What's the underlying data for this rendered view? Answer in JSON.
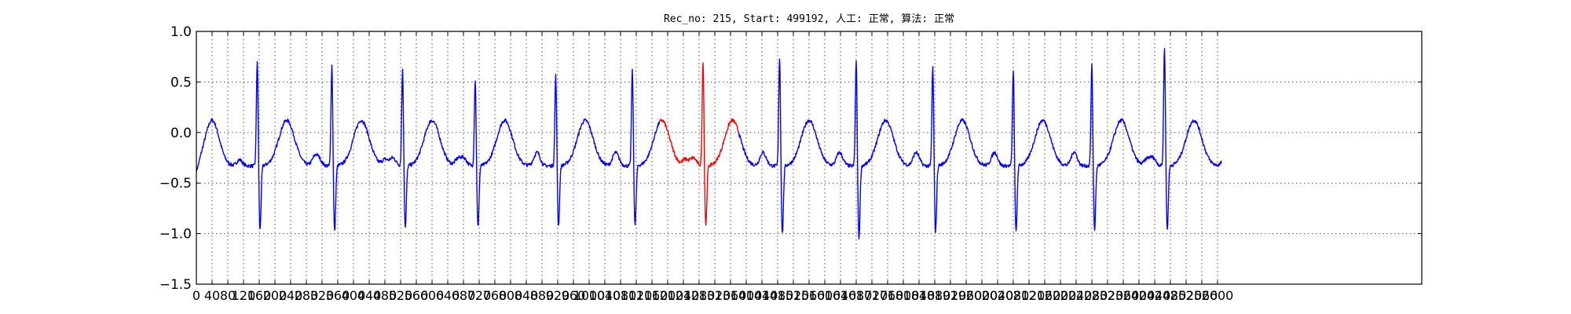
{
  "chart_data": {
    "type": "line",
    "title": "Rec_no: 215, Start: 499192, 人工: 正常, 算法: 正常",
    "xlabel": "",
    "ylabel": "",
    "xlim": [
      0,
      3120
    ],
    "ylim": [
      -1.5,
      1.0
    ],
    "grid": true,
    "yticks": [
      -1.5,
      -1.0,
      -0.5,
      0.0,
      0.5,
      1.0
    ],
    "ytick_labels": [
      "−1.5",
      "−1.0",
      "−0.5",
      "0.0",
      "0.5",
      "1.0"
    ],
    "xticks": [
      0,
      40,
      80,
      120,
      160,
      200,
      240,
      280,
      320,
      360,
      400,
      440,
      480,
      520,
      560,
      600,
      640,
      680,
      720,
      760,
      800,
      840,
      880,
      920,
      960,
      1000,
      1040,
      1080,
      1120,
      1160,
      1200,
      1240,
      1280,
      1320,
      1360,
      1400,
      1440,
      1480,
      1520,
      1560,
      1600,
      1640,
      1680,
      1720,
      1760,
      1800,
      1840,
      1880,
      1920,
      1960,
      2000,
      2040,
      2080,
      2120,
      2160,
      2200,
      2240,
      2280,
      2320,
      2360,
      2400,
      2440,
      2480,
      2520,
      2560,
      2600
    ],
    "colors": {
      "series": "#0000ff",
      "highlight": "#ff0000",
      "grid": "#555555"
    },
    "beats": [
      {
        "r": 155,
        "rAmp": 0.72,
        "sAmp": -1.0
      },
      {
        "r": 345,
        "rAmp": 0.68,
        "sAmp": -1.02
      },
      {
        "r": 525,
        "rAmp": 0.63,
        "sAmp": -0.98
      },
      {
        "r": 710,
        "rAmp": 0.53,
        "sAmp": -0.97
      },
      {
        "r": 915,
        "rAmp": 0.58,
        "sAmp": -0.96
      },
      {
        "r": 1110,
        "rAmp": 0.63,
        "sAmp": -0.95
      },
      {
        "r": 1290,
        "rAmp": 0.72,
        "sAmp": -0.95
      },
      {
        "r": 1485,
        "rAmp": 0.75,
        "sAmp": -1.04
      },
      {
        "r": 1680,
        "rAmp": 0.72,
        "sAmp": -1.09
      },
      {
        "r": 1875,
        "rAmp": 0.66,
        "sAmp": -1.02
      },
      {
        "r": 2080,
        "rAmp": 0.63,
        "sAmp": -1.03
      },
      {
        "r": 2280,
        "rAmp": 0.68,
        "sAmp": -1.0
      },
      {
        "r": 2465,
        "rAmp": 0.86,
        "sAmp": -1.0
      }
    ],
    "baseline": -0.33,
    "twave_amp": 0.45,
    "signal_start": 0,
    "signal_end": 2610,
    "highlight_range": [
      1180,
      1380
    ]
  }
}
